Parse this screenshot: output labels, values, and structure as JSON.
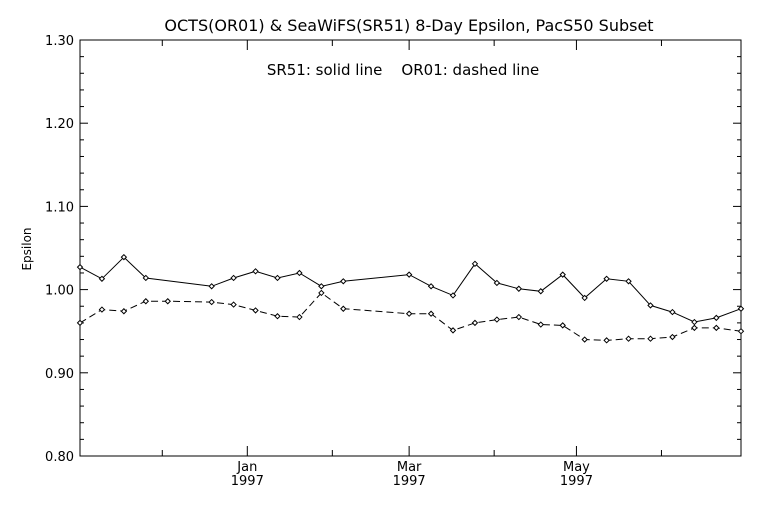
{
  "chart_data": {
    "type": "line",
    "title": "OCTS(OR01) & SeaWiFS(SR51) 8-Day Epsilon, PacS50 Subset",
    "annotation": "SR51: solid line    OR01: dashed line",
    "xlabel": "",
    "ylabel": "Epsilon",
    "ylim": [
      0.8,
      1.3
    ],
    "yticks": [
      "0.80",
      "0.90",
      "1.00",
      "1.10",
      "1.20",
      "1.30"
    ],
    "xlim": [
      "1996-11-01",
      "1997-06-30"
    ],
    "xticks": [
      {
        "date": "1997-01-01",
        "month": "Jan",
        "year": "1997"
      },
      {
        "date": "1997-03-01",
        "month": "Mar",
        "year": "1997"
      },
      {
        "date": "1997-05-01",
        "month": "May",
        "year": "1997"
      }
    ],
    "xminor": [
      "1996-12-01",
      "1997-02-01",
      "1997-04-01",
      "1997-06-01"
    ],
    "grid": false,
    "series": [
      {
        "name": "SR51",
        "style": "solid",
        "color": "#000000",
        "points": [
          [
            "1996-11-01",
            1.027
          ],
          [
            "1996-11-09",
            1.013
          ],
          [
            "1996-11-17",
            1.039
          ],
          [
            "1996-11-25",
            1.014
          ],
          [
            "1996-12-19",
            1.004
          ],
          [
            "1996-12-27",
            1.014
          ],
          [
            "1997-01-04",
            1.022
          ],
          [
            "1997-01-12",
            1.014
          ],
          [
            "1997-01-20",
            1.02
          ],
          [
            "1997-01-28",
            1.004
          ],
          [
            "1997-02-05",
            1.01
          ],
          [
            "1997-03-01",
            1.018
          ],
          [
            "1997-03-09",
            1.004
          ],
          [
            "1997-03-17",
            0.993
          ],
          [
            "1997-03-25",
            1.031
          ],
          [
            "1997-04-02",
            1.008
          ],
          [
            "1997-04-10",
            1.001
          ],
          [
            "1997-04-18",
            0.998
          ],
          [
            "1997-04-26",
            1.018
          ],
          [
            "1997-05-04",
            0.99
          ],
          [
            "1997-05-12",
            1.013
          ],
          [
            "1997-05-20",
            1.01
          ],
          [
            "1997-05-28",
            0.981
          ],
          [
            "1997-06-05",
            0.973
          ],
          [
            "1997-06-13",
            0.961
          ],
          [
            "1997-06-21",
            0.966
          ],
          [
            "1997-06-30",
            0.977
          ]
        ]
      },
      {
        "name": "OR01",
        "style": "dashed",
        "color": "#000000",
        "points": [
          [
            "1996-11-01",
            0.96
          ],
          [
            "1996-11-09",
            0.976
          ],
          [
            "1996-11-17",
            0.974
          ],
          [
            "1996-11-25",
            0.986
          ],
          [
            "1996-12-03",
            0.986
          ],
          [
            "1996-12-19",
            0.985
          ],
          [
            "1996-12-27",
            0.982
          ],
          [
            "1997-01-04",
            0.975
          ],
          [
            "1997-01-12",
            0.968
          ],
          [
            "1997-01-20",
            0.967
          ],
          [
            "1997-01-28",
            0.996
          ],
          [
            "1997-02-05",
            0.977
          ],
          [
            "1997-03-01",
            0.971
          ],
          [
            "1997-03-09",
            0.971
          ],
          [
            "1997-03-17",
            0.951
          ],
          [
            "1997-03-25",
            0.96
          ],
          [
            "1997-04-02",
            0.964
          ],
          [
            "1997-04-10",
            0.967
          ],
          [
            "1997-04-18",
            0.958
          ],
          [
            "1997-04-26",
            0.957
          ],
          [
            "1997-05-04",
            0.94
          ],
          [
            "1997-05-12",
            0.939
          ],
          [
            "1997-05-20",
            0.941
          ],
          [
            "1997-05-28",
            0.941
          ],
          [
            "1997-06-05",
            0.943
          ],
          [
            "1997-06-13",
            0.954
          ],
          [
            "1997-06-21",
            0.954
          ],
          [
            "1997-06-30",
            0.95
          ]
        ]
      }
    ]
  }
}
